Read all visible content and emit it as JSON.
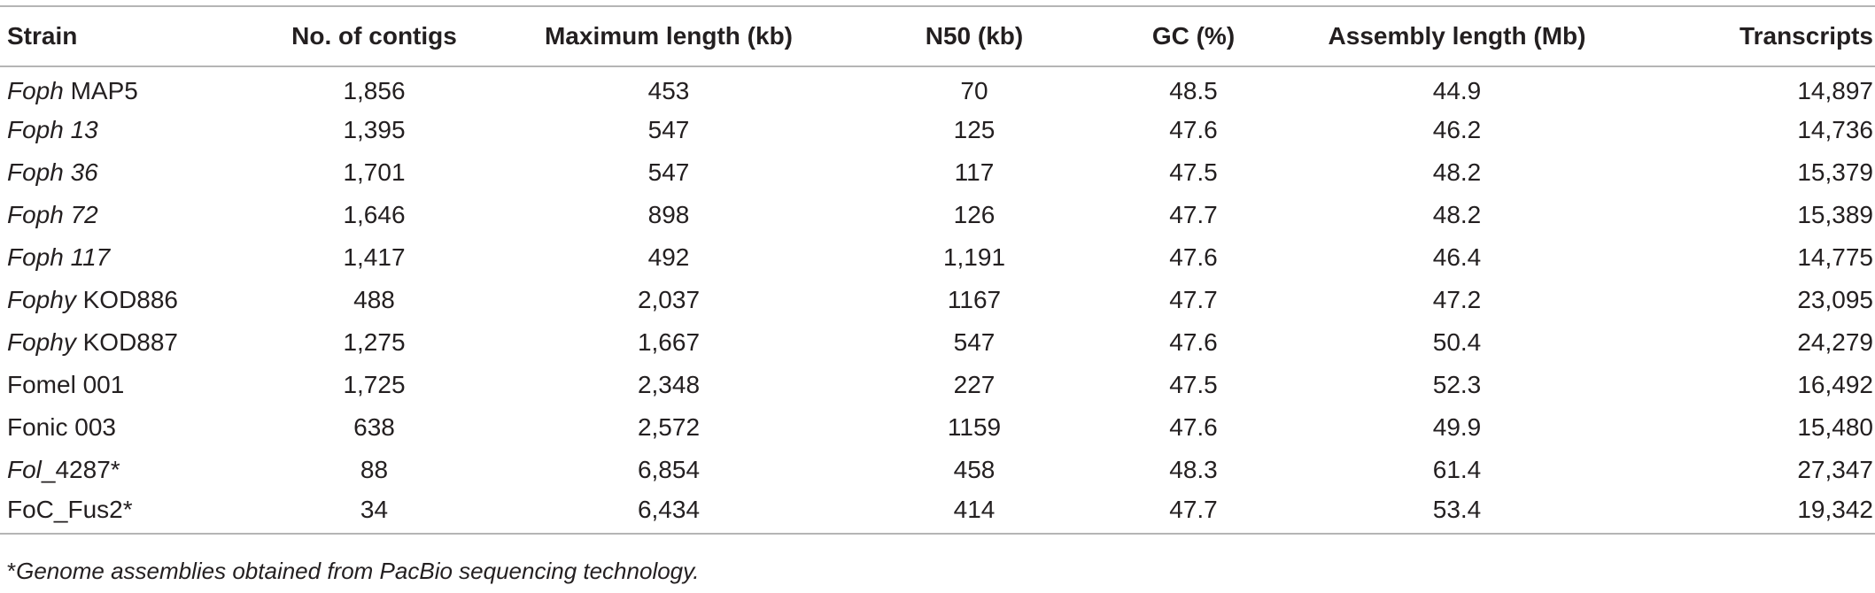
{
  "table": {
    "headers": [
      "Strain",
      "No. of contigs",
      "Maximum length (kb)",
      "N50 (kb)",
      "GC (%)",
      "Assembly length (Mb)",
      "Transcripts"
    ],
    "rows": [
      {
        "strain_italic": "Foph",
        "strain_plain": " MAP5",
        "contigs": "1,856",
        "max_length": "453",
        "n50": "70",
        "gc": "48.5",
        "assembly_length": "44.9",
        "transcripts": "14,897"
      },
      {
        "strain_italic": "Foph 13",
        "strain_plain": "",
        "contigs": "1,395",
        "max_length": "547",
        "n50": "125",
        "gc": "47.6",
        "assembly_length": "46.2",
        "transcripts": "14,736"
      },
      {
        "strain_italic": "Foph 36",
        "strain_plain": "",
        "contigs": "1,701",
        "max_length": "547",
        "n50": "117",
        "gc": "47.5",
        "assembly_length": "48.2",
        "transcripts": "15,379"
      },
      {
        "strain_italic": "Foph 72",
        "strain_plain": "",
        "contigs": "1,646",
        "max_length": "898",
        "n50": "126",
        "gc": "47.7",
        "assembly_length": "48.2",
        "transcripts": "15,389"
      },
      {
        "strain_italic": "Foph 117",
        "strain_plain": "",
        "contigs": "1,417",
        "max_length": "492",
        "n50": "1,191",
        "gc": "47.6",
        "assembly_length": "46.4",
        "transcripts": "14,775"
      },
      {
        "strain_italic": "Fophy",
        "strain_plain": " KOD886",
        "contigs": "488",
        "max_length": "2,037",
        "n50": "1167",
        "gc": "47.7",
        "assembly_length": "47.2",
        "transcripts": "23,095"
      },
      {
        "strain_italic": "Fophy",
        "strain_plain": " KOD887",
        "contigs": "1,275",
        "max_length": "1,667",
        "n50": "547",
        "gc": "47.6",
        "assembly_length": "50.4",
        "transcripts": "24,279"
      },
      {
        "strain_italic": "",
        "strain_plain": "Fomel 001",
        "contigs": "1,725",
        "max_length": "2,348",
        "n50": "227",
        "gc": "47.5",
        "assembly_length": "52.3",
        "transcripts": "16,492"
      },
      {
        "strain_italic": "",
        "strain_plain": "Fonic 003",
        "contigs": "638",
        "max_length": "2,572",
        "n50": "1159",
        "gc": "47.6",
        "assembly_length": "49.9",
        "transcripts": "15,480"
      },
      {
        "strain_italic": "Fol",
        "strain_plain": "_4287*",
        "contigs": "88",
        "max_length": "6,854",
        "n50": "458",
        "gc": "48.3",
        "assembly_length": "61.4",
        "transcripts": "27,347"
      },
      {
        "strain_italic": "",
        "strain_plain": "FoC_Fus2*",
        "contigs": "34",
        "max_length": "6,434",
        "n50": "414",
        "gc": "47.7",
        "assembly_length": "53.4",
        "transcripts": "19,342"
      }
    ]
  },
  "footnote": {
    "mark": "*",
    "text": "Genome assemblies obtained from PacBio sequencing technology."
  }
}
